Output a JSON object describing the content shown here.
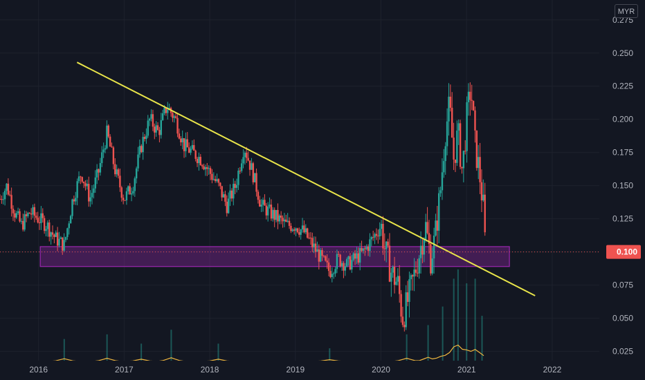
{
  "currency": "MYR",
  "current_price_label": "0.100",
  "colors": {
    "background": "#131722",
    "grid": "#1e222d",
    "up": "#26a69a",
    "down": "#ef5350",
    "trendline": "#e9e54a",
    "support_zone": "#9c27b0",
    "volume_ma": "#f0b73f",
    "price_line": "#ef5350"
  },
  "chart_data": {
    "type": "candlestick",
    "price_axis": {
      "ticks": [
        "0.025",
        "0.050",
        "0.075",
        "0.100",
        "0.125",
        "0.150",
        "0.175",
        "0.200",
        "0.225",
        "0.250",
        "0.275"
      ],
      "range": [
        0.018,
        0.29
      ],
      "side": "right"
    },
    "time_axis": {
      "ticks": [
        "2016",
        "2017",
        "2018",
        "2019",
        "2020",
        "2021",
        "2022"
      ],
      "range": [
        "2015.55",
        "2022.55"
      ]
    },
    "grid": true,
    "current_price": 0.1,
    "series": [
      {
        "kind": "price_path",
        "points": [
          [
            2015.55,
            0.14
          ],
          [
            2015.63,
            0.15
          ],
          [
            2015.72,
            0.13
          ],
          [
            2015.8,
            0.12
          ],
          [
            2015.9,
            0.13
          ],
          [
            2016.0,
            0.125
          ],
          [
            2016.1,
            0.12
          ],
          [
            2016.2,
            0.11
          ],
          [
            2016.3,
            0.105
          ],
          [
            2016.4,
            0.14
          ],
          [
            2016.5,
            0.16
          ],
          [
            2016.6,
            0.14
          ],
          [
            2016.7,
            0.16
          ],
          [
            2016.8,
            0.19
          ],
          [
            2016.9,
            0.16
          ],
          [
            2017.0,
            0.14
          ],
          [
            2017.1,
            0.15
          ],
          [
            2017.2,
            0.18
          ],
          [
            2017.3,
            0.2
          ],
          [
            2017.4,
            0.19
          ],
          [
            2017.5,
            0.21
          ],
          [
            2017.6,
            0.2
          ],
          [
            2017.7,
            0.18
          ],
          [
            2017.8,
            0.175
          ],
          [
            2017.9,
            0.17
          ],
          [
            2018.0,
            0.16
          ],
          [
            2018.1,
            0.15
          ],
          [
            2018.2,
            0.135
          ],
          [
            2018.3,
            0.15
          ],
          [
            2018.4,
            0.18
          ],
          [
            2018.5,
            0.16
          ],
          [
            2018.6,
            0.135
          ],
          [
            2018.7,
            0.13
          ],
          [
            2018.8,
            0.125
          ],
          [
            2018.9,
            0.12
          ],
          [
            2019.0,
            0.12
          ],
          [
            2019.1,
            0.115
          ],
          [
            2019.2,
            0.105
          ],
          [
            2019.3,
            0.095
          ],
          [
            2019.4,
            0.085
          ],
          [
            2019.5,
            0.095
          ],
          [
            2019.6,
            0.09
          ],
          [
            2019.7,
            0.095
          ],
          [
            2019.8,
            0.1
          ],
          [
            2019.9,
            0.11
          ],
          [
            2020.0,
            0.12
          ],
          [
            2020.05,
            0.1
          ],
          [
            2020.12,
            0.085
          ],
          [
            2020.2,
            0.075
          ],
          [
            2020.25,
            0.05
          ],
          [
            2020.3,
            0.06
          ],
          [
            2020.38,
            0.08
          ],
          [
            2020.45,
            0.1
          ],
          [
            2020.52,
            0.12
          ],
          [
            2020.58,
            0.095
          ],
          [
            2020.63,
            0.11
          ],
          [
            2020.7,
            0.15
          ],
          [
            2020.75,
            0.19
          ],
          [
            2020.8,
            0.21
          ],
          [
            2020.85,
            0.17
          ],
          [
            2020.9,
            0.19
          ],
          [
            2020.95,
            0.16
          ],
          [
            2021.0,
            0.2
          ],
          [
            2021.05,
            0.225
          ],
          [
            2021.1,
            0.18
          ],
          [
            2021.15,
            0.16
          ],
          [
            2021.2,
            0.13
          ],
          [
            2021.22,
            0.1
          ]
        ]
      }
    ],
    "drawings": [
      {
        "kind": "trendline",
        "from": [
          2016.45,
          0.243
        ],
        "to": [
          2021.8,
          0.067
        ]
      },
      {
        "kind": "rectangle_zone",
        "x_range": [
          2016.02,
          2021.5
        ],
        "y_range": [
          0.089,
          0.104
        ]
      }
    ],
    "volume": {
      "baseline_price": 0.021,
      "max_height_price": 0.02,
      "spikes": [
        [
          2016.3,
          0.25
        ],
        [
          2016.8,
          0.3
        ],
        [
          2017.2,
          0.2
        ],
        [
          2017.55,
          0.35
        ],
        [
          2018.1,
          0.2
        ],
        [
          2019.4,
          0.15
        ],
        [
          2020.3,
          0.3
        ],
        [
          2020.55,
          0.4
        ],
        [
          2020.72,
          0.6
        ],
        [
          2020.85,
          0.9
        ],
        [
          2020.9,
          1.0
        ],
        [
          2021.0,
          0.85
        ],
        [
          2021.1,
          0.9
        ],
        [
          2021.18,
          0.5
        ]
      ]
    }
  }
}
